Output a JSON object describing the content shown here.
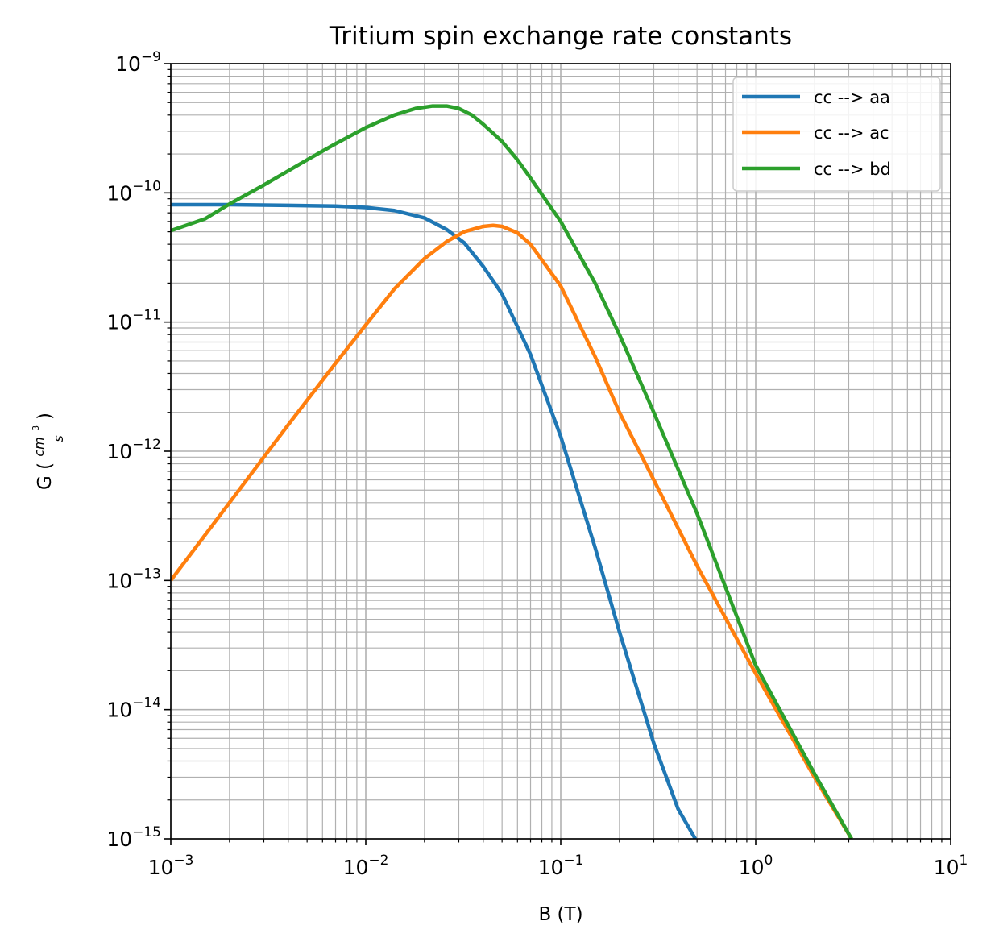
{
  "chart_data": {
    "type": "line",
    "title": "Tritium spin exchange rate constants",
    "xlabel": "B (T)",
    "ylabel": {
      "prefix": "G (",
      "numerator": "cm",
      "numerator_exp": "3",
      "denominator": "s",
      "suffix": ")"
    },
    "x_scale": "log",
    "y_scale": "log",
    "xlim": [
      0.001,
      10
    ],
    "ylim": [
      1e-15,
      1e-09
    ],
    "grid": "major and minor",
    "legend_position": "top-right",
    "x_ticks": [
      {
        "base": "10",
        "exp": "−3"
      },
      {
        "base": "10",
        "exp": "−2"
      },
      {
        "base": "10",
        "exp": "−1"
      },
      {
        "base": "10",
        "exp": "0"
      },
      {
        "base": "10",
        "exp": "1"
      }
    ],
    "y_ticks": [
      {
        "base": "10",
        "exp": "−9"
      },
      {
        "base": "10",
        "exp": "−10"
      },
      {
        "base": "10",
        "exp": "−11"
      },
      {
        "base": "10",
        "exp": "−12"
      },
      {
        "base": "10",
        "exp": "−13"
      },
      {
        "base": "10",
        "exp": "−14"
      },
      {
        "base": "10",
        "exp": "−15"
      }
    ],
    "series": [
      {
        "name": "cc --> aa",
        "color": "#1f77b4",
        "x": [
          0.001,
          0.002,
          0.004,
          0.007,
          0.01,
          0.014,
          0.02,
          0.026,
          0.032,
          0.04,
          0.05,
          0.07,
          0.1,
          0.15,
          0.2,
          0.3,
          0.4,
          0.49
        ],
        "y": [
          8.1e-11,
          8.1e-11,
          8e-11,
          7.9e-11,
          7.7e-11,
          7.3e-11,
          6.4e-11,
          5.2e-11,
          4.1e-11,
          2.7e-11,
          1.65e-11,
          5.6e-12,
          1.3e-12,
          1.8e-13,
          4e-14,
          5.5e-15,
          1.7e-15,
          1e-15
        ]
      },
      {
        "name": "cc --> ac",
        "color": "#ff7f0e",
        "x": [
          0.001,
          0.002,
          0.004,
          0.007,
          0.01,
          0.014,
          0.02,
          0.026,
          0.032,
          0.04,
          0.045,
          0.05,
          0.06,
          0.07,
          0.1,
          0.15,
          0.2,
          0.3,
          0.5,
          1.0,
          2.0,
          3.1
        ],
        "y": [
          1e-13,
          4e-13,
          1.6e-12,
          4.8e-12,
          9.5e-12,
          1.8e-11,
          3.1e-11,
          4.2e-11,
          5e-11,
          5.5e-11,
          5.6e-11,
          5.5e-11,
          4.9e-11,
          4e-11,
          1.9e-11,
          5.4e-12,
          2e-12,
          6e-13,
          1.3e-13,
          1.9e-14,
          3e-15,
          1e-15
        ]
      },
      {
        "name": "cc --> bd",
        "color": "#2ca02c",
        "x": [
          0.001,
          0.0015,
          0.002,
          0.003,
          0.005,
          0.007,
          0.01,
          0.014,
          0.018,
          0.022,
          0.026,
          0.03,
          0.035,
          0.04,
          0.05,
          0.06,
          0.07,
          0.1,
          0.15,
          0.2,
          0.3,
          0.5,
          1.0,
          2.0,
          3.1
        ],
        "y": [
          5.1e-11,
          6.3e-11,
          8.2e-11,
          1.15e-10,
          1.8e-10,
          2.4e-10,
          3.2e-10,
          4e-10,
          4.5e-10,
          4.7e-10,
          4.7e-10,
          4.5e-10,
          4e-10,
          3.4e-10,
          2.5e-10,
          1.8e-10,
          1.3e-10,
          6e-11,
          2e-11,
          8e-12,
          2e-12,
          3.3e-13,
          2.2e-14,
          3.2e-15,
          1e-15
        ]
      }
    ]
  }
}
